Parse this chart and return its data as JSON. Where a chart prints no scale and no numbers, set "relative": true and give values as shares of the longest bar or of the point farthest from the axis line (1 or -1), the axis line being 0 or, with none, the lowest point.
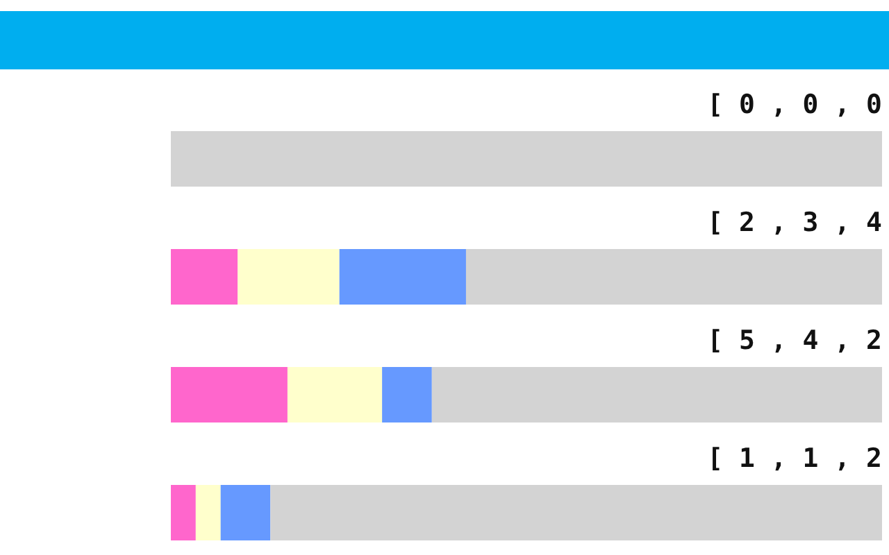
{
  "chart_data": {
    "type": "bar",
    "orientation": "horizontal",
    "stacked": true,
    "relative": true,
    "categories": [
      null,
      null,
      null,
      null
    ],
    "series": [
      {
        "color": "#ff66cc",
        "values": [
          0,
          0.094,
          0.164,
          0.035
        ]
      },
      {
        "color": "#ffffcc",
        "values": [
          0,
          0.143,
          0.133,
          0.035
        ]
      },
      {
        "color": "#6699ff",
        "values": [
          0,
          0.178,
          0.07,
          0.07
        ]
      },
      {
        "color": "#d3d3d3",
        "values": [
          1,
          0.585,
          0.633,
          0.86
        ]
      }
    ],
    "annotations": [
      "[ 0 , 0 , 0",
      "[ 2 , 3 , 4",
      "[ 5 , 4 , 2",
      "[ 1 , 1 , 2"
    ]
  }
}
